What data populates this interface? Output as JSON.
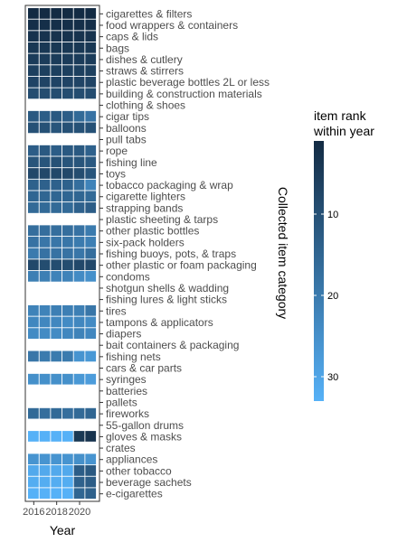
{
  "chart_data": {
    "type": "heatmap",
    "title": "",
    "xlabel": "Year",
    "ylabel": "Collected item category",
    "x": [
      2016,
      2017,
      2018,
      2019,
      2020,
      2021
    ],
    "x_ticks": [
      "2016",
      "2018",
      "2020"
    ],
    "categories": [
      "cigarettes & filters",
      "food wrappers & containers",
      "caps & lids",
      "bags",
      "dishes & cutlery",
      "straws & stirrers",
      "plastic beverage bottles 2L or less",
      "building & construction materials",
      "clothing & shoes",
      "cigar tips",
      "balloons",
      "pull tabs",
      "rope",
      "fishing line",
      "toys",
      "tobacco packaging & wrap",
      "cigarette lighters",
      "strapping bands",
      "plastic sheeting & tarps",
      "other plastic bottles",
      "six-pack holders",
      "fishing buoys, pots, & traps",
      "other plastic or foam packaging",
      "condoms",
      "shotgun shells & wadding",
      "fishing lures & light sticks",
      "tires",
      "tampons & applicators",
      "diapers",
      "bait containers & packaging",
      "fishing nets",
      "cars & car parts",
      "syringes",
      "batteries",
      "pallets",
      "fireworks",
      "55-gallon drums",
      "gloves & masks",
      "crates",
      "appliances",
      "other tobacco",
      "beverage sachets",
      "e-cigarettes"
    ],
    "values": [
      [
        1,
        1,
        1,
        1,
        1,
        1
      ],
      [
        2,
        2,
        2,
        2,
        2,
        2
      ],
      [
        3,
        3,
        3,
        3,
        3,
        3
      ],
      [
        4,
        4,
        4,
        4,
        4,
        4
      ],
      [
        5,
        5,
        5,
        5,
        5,
        5
      ],
      [
        6,
        6,
        6,
        6,
        6,
        6
      ],
      [
        7,
        7,
        7,
        7,
        7,
        7
      ],
      [
        9,
        9,
        9,
        9,
        9,
        9
      ],
      [
        null,
        null,
        null,
        null,
        null,
        null
      ],
      [
        12,
        13,
        12,
        13,
        16,
        18
      ],
      [
        10,
        10,
        11,
        10,
        10,
        10
      ],
      [
        null,
        null,
        null,
        null,
        null,
        null
      ],
      [
        13,
        12,
        13,
        12,
        12,
        14
      ],
      [
        11,
        11,
        10,
        11,
        11,
        12
      ],
      [
        8,
        8,
        8,
        8,
        9,
        11
      ],
      [
        14,
        14,
        14,
        14,
        17,
        22
      ],
      [
        15,
        15,
        15,
        15,
        15,
        16
      ],
      [
        16,
        16,
        16,
        16,
        14,
        13
      ],
      [
        null,
        null,
        null,
        null,
        null,
        null
      ],
      [
        17,
        17,
        17,
        17,
        18,
        20
      ],
      [
        18,
        19,
        19,
        19,
        20,
        21
      ],
      [
        20,
        18,
        18,
        18,
        19,
        17
      ],
      [
        8,
        9,
        9,
        9,
        8,
        8
      ],
      [
        21,
        21,
        22,
        22,
        24,
        25
      ],
      [
        null,
        null,
        null,
        null,
        null,
        null
      ],
      [
        null,
        null,
        null,
        null,
        null,
        null
      ],
      [
        22,
        22,
        21,
        21,
        21,
        19
      ],
      [
        23,
        23,
        23,
        24,
        23,
        24
      ],
      [
        24,
        24,
        24,
        23,
        22,
        23
      ],
      [
        null,
        null,
        null,
        null,
        null,
        null
      ],
      [
        19,
        20,
        20,
        20,
        26,
        27
      ],
      [
        null,
        null,
        null,
        null,
        null,
        null
      ],
      [
        25,
        25,
        25,
        25,
        27,
        28
      ],
      [
        null,
        null,
        null,
        null,
        null,
        null
      ],
      [
        null,
        null,
        null,
        null,
        null,
        null
      ],
      [
        16,
        17,
        16,
        17,
        16,
        15
      ],
      [
        null,
        null,
        null,
        null,
        null,
        null
      ],
      [
        33,
        33,
        33,
        33,
        4,
        3
      ],
      [
        null,
        null,
        null,
        null,
        null,
        null
      ],
      [
        26,
        26,
        26,
        26,
        25,
        26
      ],
      [
        31,
        31,
        31,
        31,
        13,
        12
      ],
      [
        32,
        32,
        32,
        32,
        14,
        13
      ],
      [
        33,
        33,
        33,
        33,
        15,
        14
      ]
    ],
    "legend": {
      "title_lines": [
        "item rank",
        "within year"
      ],
      "ticks": [
        10,
        20,
        30
      ],
      "range": [
        1,
        33
      ],
      "color_low_rank": "#132B43",
      "color_high_rank": "#56B1F7"
    }
  }
}
